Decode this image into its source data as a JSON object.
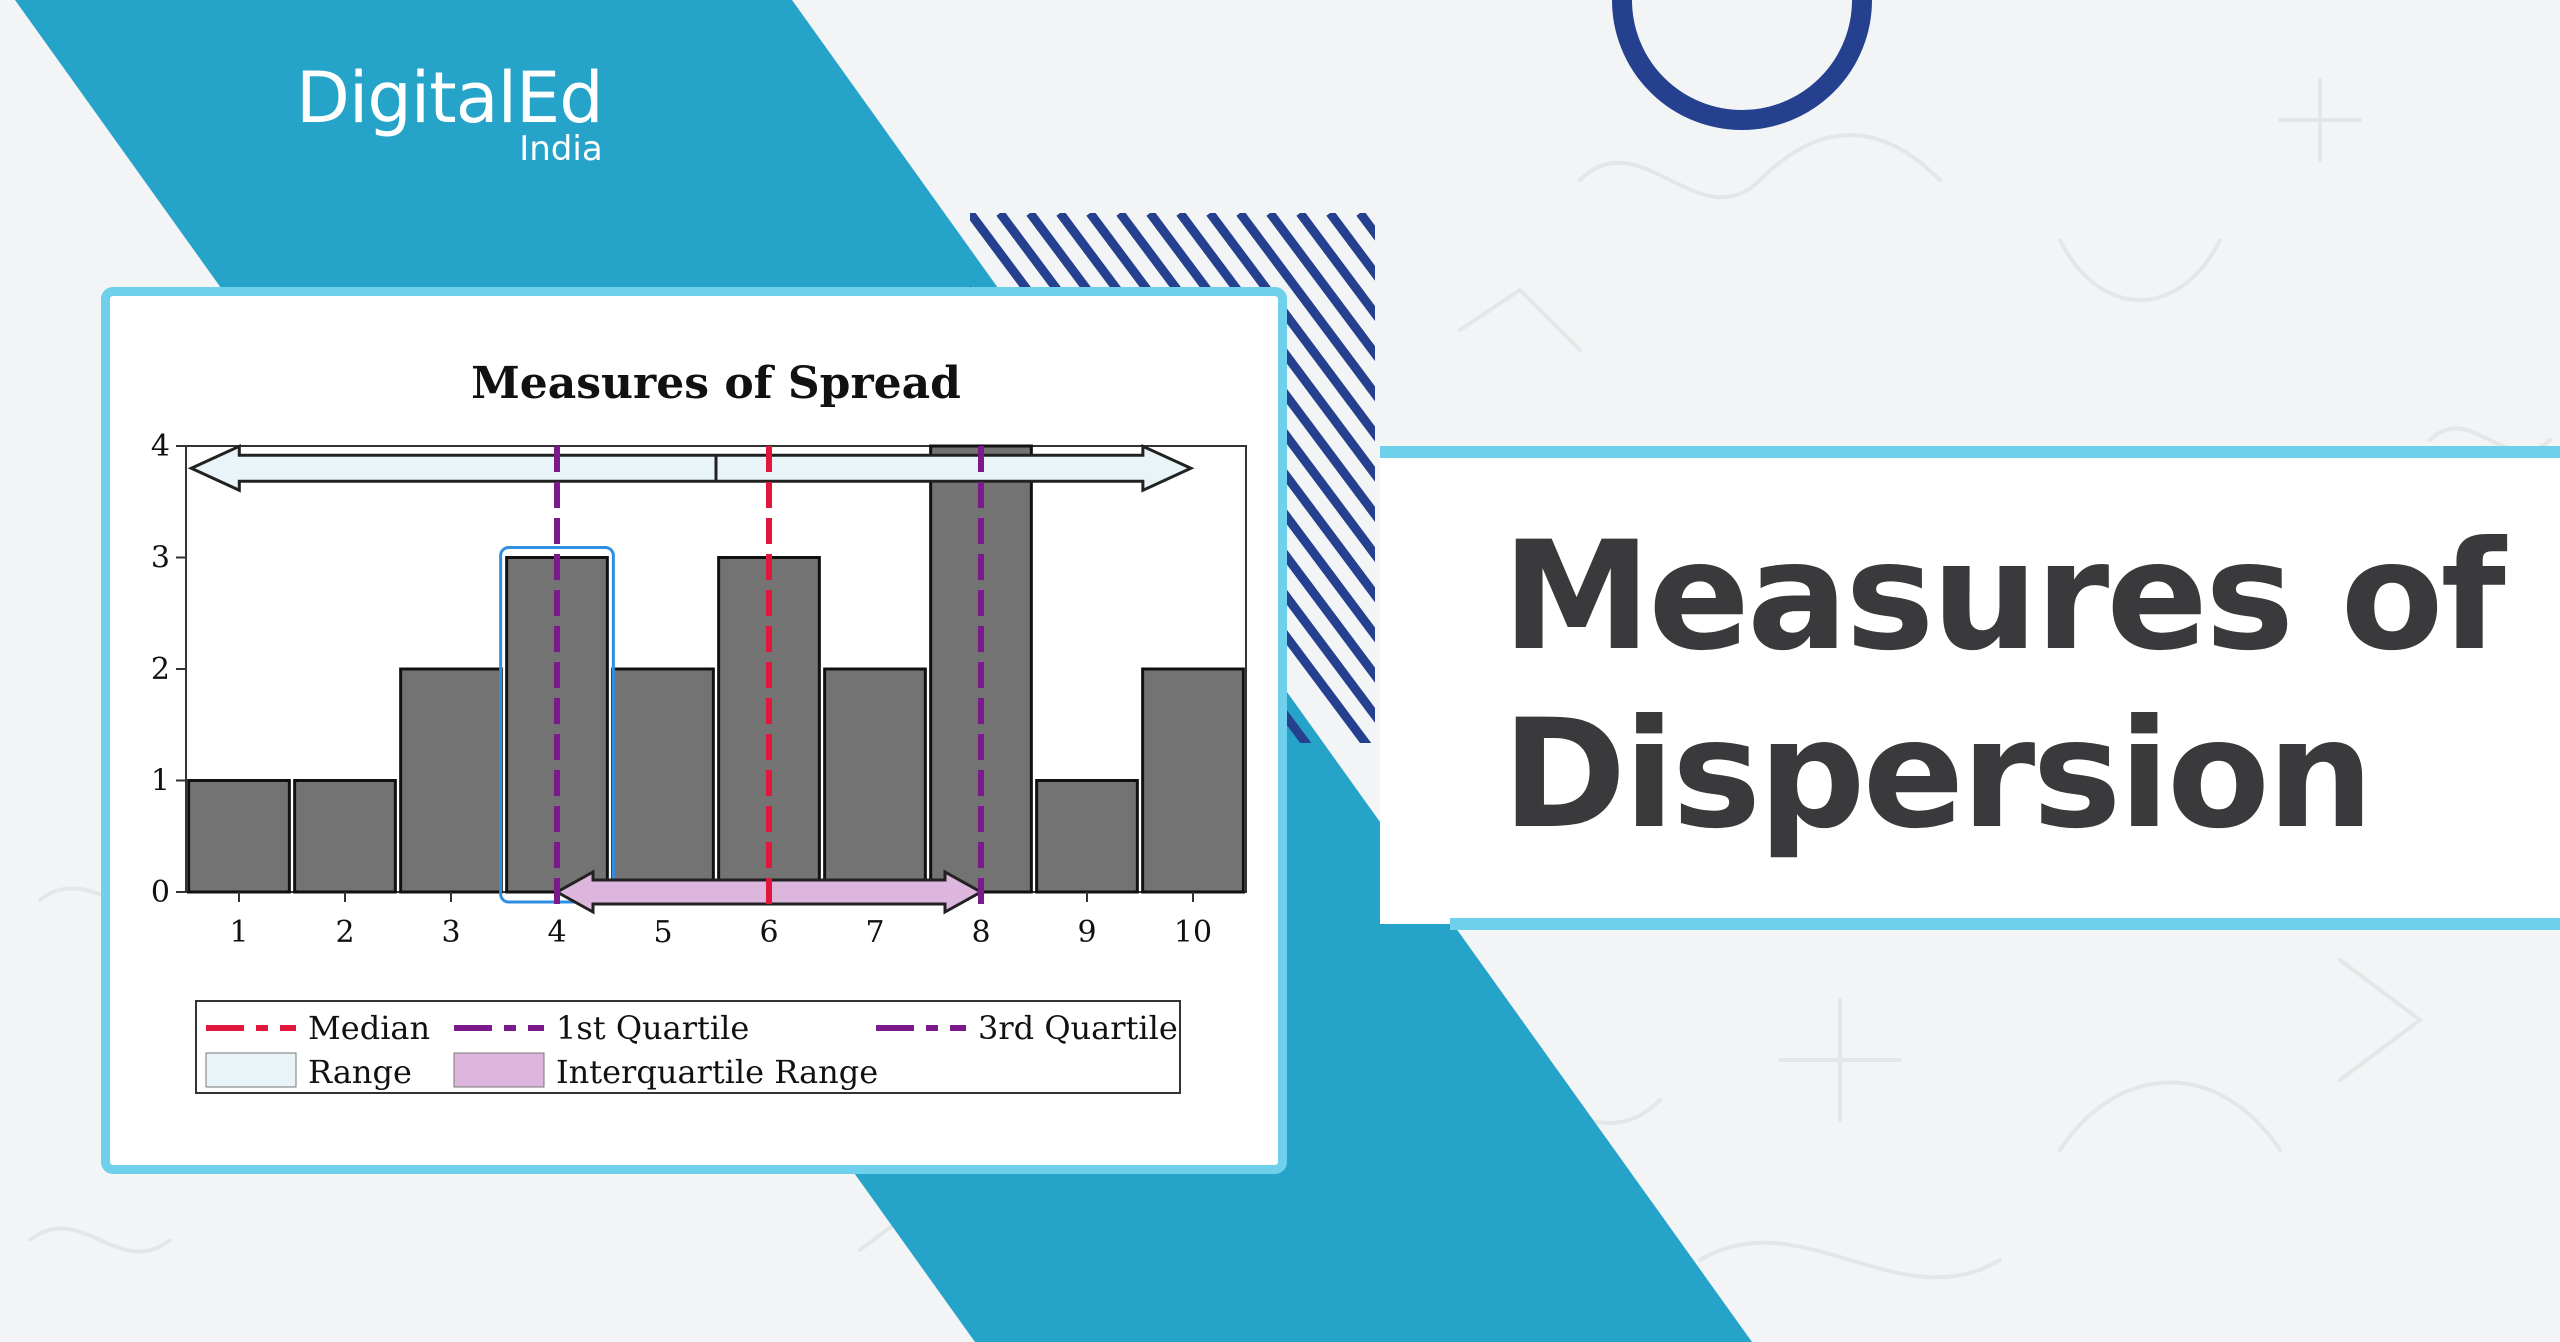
{
  "brand": {
    "name": "DigitalEd",
    "sub": "India"
  },
  "headline": {
    "line1": "Measures of",
    "line2": "Dispersion"
  },
  "colors": {
    "teal": "#26a3c9",
    "navy": "#24408f",
    "light_blue": "#6fd0ec",
    "bar_fill": "#737373",
    "median": "#e0163c",
    "quartile": "#7a1a8c",
    "range_fill": "#e8f4f8",
    "iqr_fill": "#ddb6dd",
    "text_dark": "#3a3a3c"
  },
  "chart_data": {
    "type": "bar",
    "title": "Measures of Spread",
    "categories": [
      "1",
      "2",
      "3",
      "4",
      "5",
      "6",
      "7",
      "8",
      "9",
      "10"
    ],
    "values": [
      1,
      1,
      2,
      3,
      2,
      3,
      2,
      4,
      1,
      2
    ],
    "y_ticks": [
      "0",
      "1",
      "2",
      "3",
      "4"
    ],
    "ylim": [
      0,
      4
    ],
    "median": 6,
    "first_quartile": 4,
    "third_quartile": 8,
    "range": [
      1,
      10
    ],
    "interquartile_range": [
      4,
      8
    ],
    "highlighted_category": "4",
    "legend": {
      "median": "Median",
      "q1": "1st Quartile",
      "q3": "3rd Quartile",
      "range": "Range",
      "iqr": "Interquartile Range"
    },
    "legend_placement": "bottom"
  }
}
